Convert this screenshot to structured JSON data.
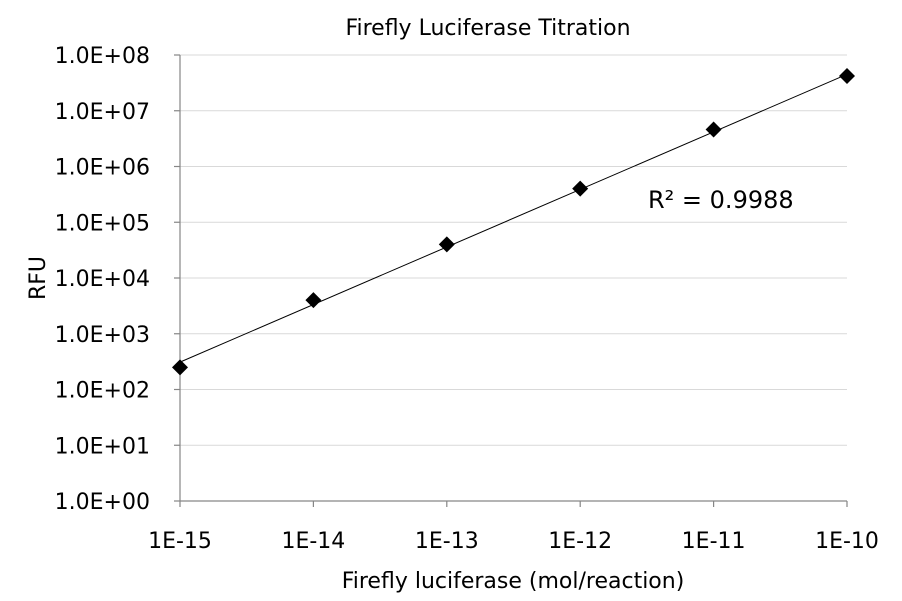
{
  "chart_data": {
    "type": "scatter",
    "title": "Firefly Luciferase Titration",
    "xlabel": "Firefly luciferase (mol/reaction)",
    "ylabel": "RFU",
    "x_scale": "log",
    "y_scale": "log",
    "xlim": [
      1e-15,
      1e-10
    ],
    "ylim": [
      1,
      100000000
    ],
    "x_ticks": [
      1e-15,
      1e-14,
      1e-13,
      1e-12,
      1e-11,
      1e-10
    ],
    "x_tick_labels": [
      "1E-15",
      "1E-14",
      "1E-13",
      "1E-12",
      "1E-11",
      "1E-10"
    ],
    "y_ticks": [
      1,
      10,
      100,
      1000,
      10000,
      100000,
      1000000,
      10000000,
      100000000
    ],
    "y_tick_labels": [
      "1.0E+00",
      "1.0E+01",
      "1.0E+02",
      "1.0E+03",
      "1.0E+04",
      "1.0E+05",
      "1.0E+06",
      "1.0E+07",
      "1.0E+08"
    ],
    "grid": "horizontal",
    "marker": "diamond",
    "color": "#000000",
    "series": [
      {
        "x": [
          1e-15,
          1e-14,
          1e-13,
          1e-12,
          1e-11,
          1e-10
        ],
        "y": [
          250,
          4000,
          40000,
          400000,
          4600000,
          42000000
        ]
      }
    ],
    "trendline": {
      "type": "power",
      "x": [
        1e-15,
        1e-10
      ],
      "y": [
        310,
        45000000
      ]
    },
    "annotations": [
      {
        "text": "R² = 0.9988"
      }
    ]
  }
}
